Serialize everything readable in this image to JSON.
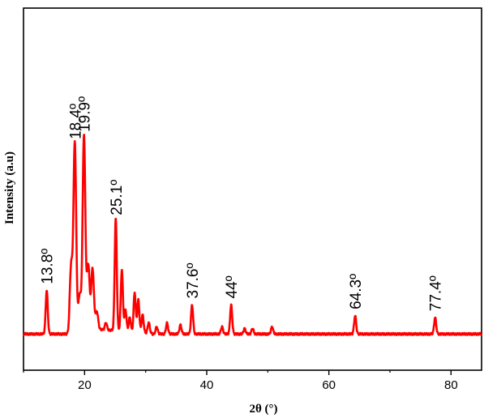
{
  "chart_data": {
    "type": "line",
    "title": "",
    "xlabel": "2θ (°)",
    "ylabel": "Intensity (a.u)",
    "xlim": [
      10,
      85
    ],
    "ylim": [
      0,
      100
    ],
    "x_ticks": [
      20,
      40,
      60,
      80
    ],
    "x_tick_labels": [
      "20",
      "40",
      "60",
      "80"
    ],
    "y_ticks_shown": false,
    "grid": false,
    "legend": "none",
    "series": [
      {
        "color": "#ff0000",
        "baseline": 10,
        "peaks": [
          {
            "x": 13.8,
            "y": 22
          },
          {
            "x": 17.8,
            "y": 28
          },
          {
            "x": 18.4,
            "y": 62
          },
          {
            "x": 19.2,
            "y": 20
          },
          {
            "x": 19.9,
            "y": 64
          },
          {
            "x": 20.6,
            "y": 28
          },
          {
            "x": 21.3,
            "y": 27
          },
          {
            "x": 22.0,
            "y": 15
          },
          {
            "x": 23.5,
            "y": 12
          },
          {
            "x": 25.1,
            "y": 41
          },
          {
            "x": 26.1,
            "y": 27
          },
          {
            "x": 26.7,
            "y": 16
          },
          {
            "x": 27.4,
            "y": 14
          },
          {
            "x": 28.2,
            "y": 21
          },
          {
            "x": 28.8,
            "y": 19
          },
          {
            "x": 29.5,
            "y": 15
          },
          {
            "x": 30.5,
            "y": 13
          },
          {
            "x": 31.8,
            "y": 12
          },
          {
            "x": 33.5,
            "y": 13
          },
          {
            "x": 35.7,
            "y": 12.5
          },
          {
            "x": 37.6,
            "y": 18
          },
          {
            "x": 42.5,
            "y": 12
          },
          {
            "x": 44.0,
            "y": 18
          },
          {
            "x": 46.2,
            "y": 11.5
          },
          {
            "x": 47.5,
            "y": 11.5
          },
          {
            "x": 50.7,
            "y": 12
          },
          {
            "x": 64.3,
            "y": 15
          },
          {
            "x": 77.4,
            "y": 14.5
          }
        ]
      }
    ],
    "annotations": [
      {
        "text": "13.8º",
        "x": 13.8,
        "y": 22
      },
      {
        "text": "18.4º",
        "x": 18.4,
        "y": 62
      },
      {
        "text": "19.9º",
        "x": 19.9,
        "y": 64
      },
      {
        "text": "25.1º",
        "x": 25.1,
        "y": 41
      },
      {
        "text": "37.6º",
        "x": 37.6,
        "y": 18
      },
      {
        "text": "44º",
        "x": 44.0,
        "y": 18
      },
      {
        "text": "64.3º",
        "x": 64.3,
        "y": 15
      },
      {
        "text": "77.4º",
        "x": 77.4,
        "y": 14.5
      }
    ]
  }
}
